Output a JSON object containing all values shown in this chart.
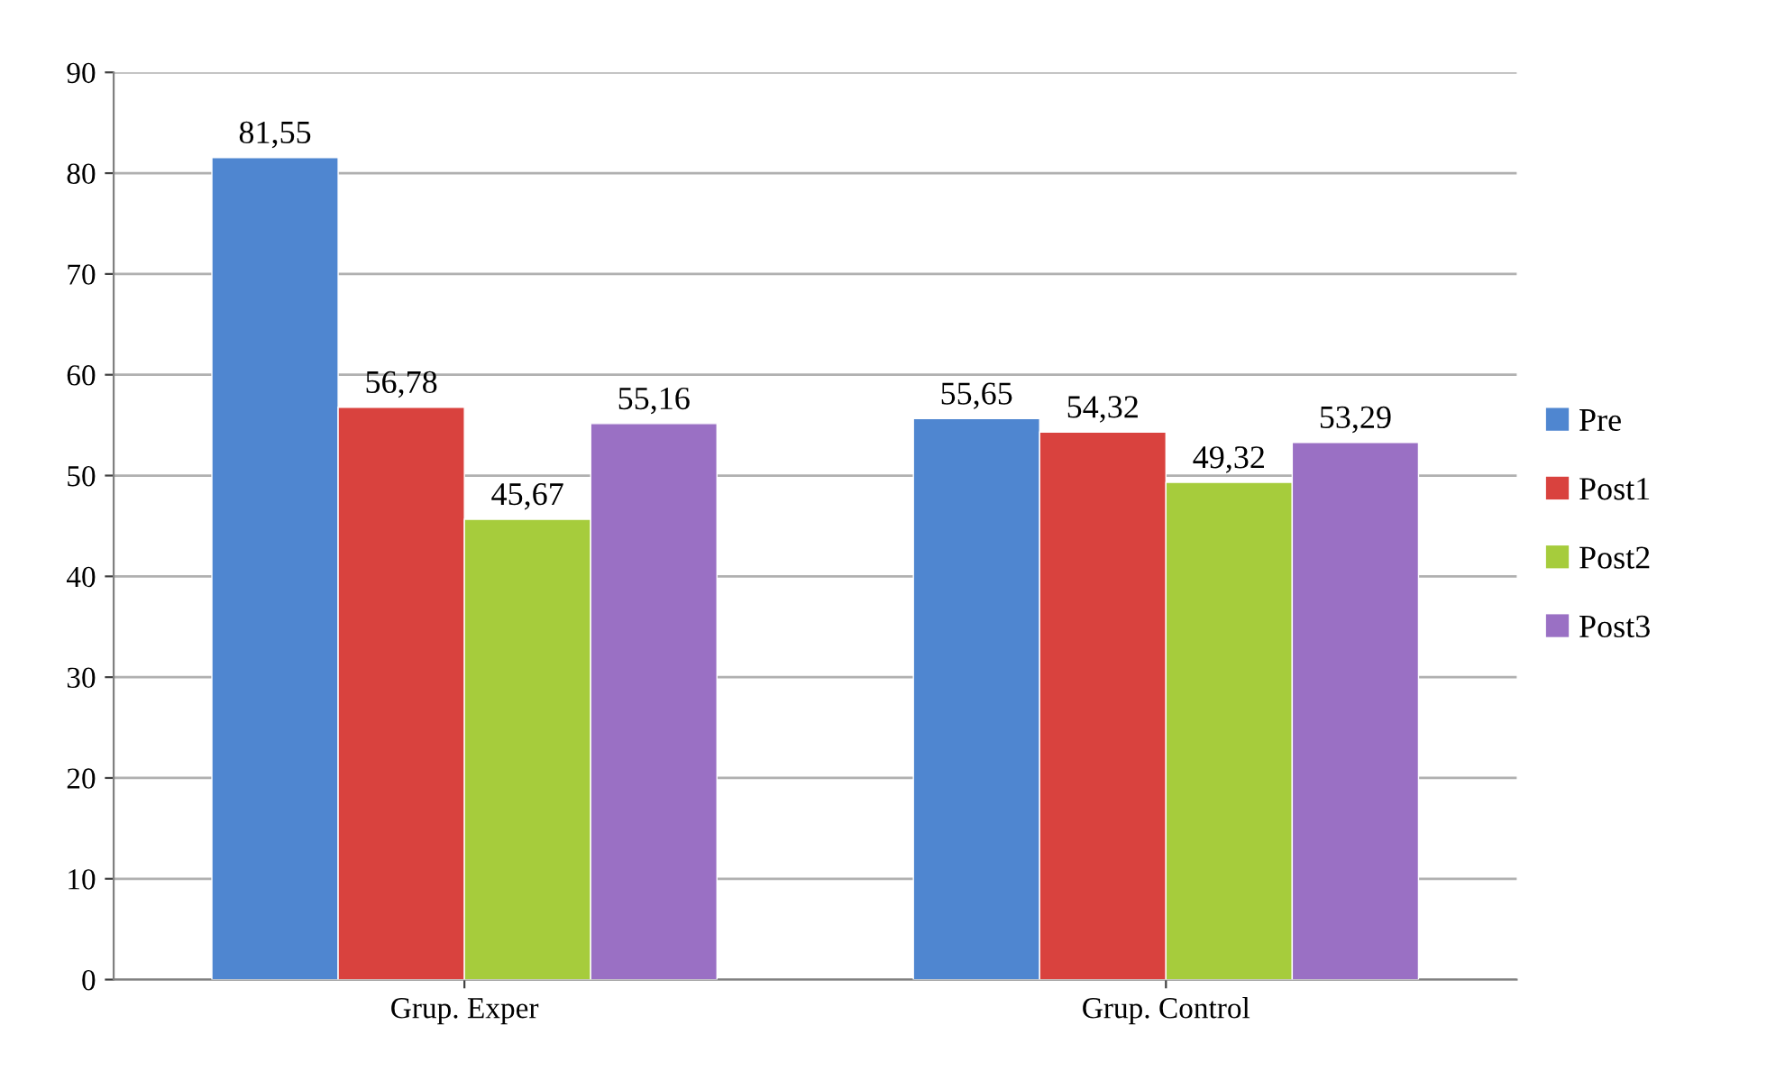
{
  "chart_data": {
    "type": "bar",
    "categories": [
      "Grup. Exper",
      "Grup. Control"
    ],
    "series": [
      {
        "name": "Pre",
        "color": "#4f86d0",
        "values": [
          81.55,
          55.65
        ],
        "value_labels": [
          "81,55",
          "55,65"
        ]
      },
      {
        "name": "Post1",
        "color": "#d9423e",
        "values": [
          56.78,
          54.32
        ],
        "value_labels": [
          "56,78",
          "54,32"
        ]
      },
      {
        "name": "Post2",
        "color": "#a6cc3c",
        "values": [
          45.67,
          49.32
        ],
        "value_labels": [
          "45,67",
          "49,32"
        ]
      },
      {
        "name": "Post3",
        "color": "#9a70c4",
        "values": [
          55.16,
          53.29
        ],
        "value_labels": [
          "55,16",
          "53,29"
        ]
      }
    ],
    "ylim": [
      0,
      90
    ],
    "yticks": [
      0,
      10,
      20,
      30,
      40,
      50,
      60,
      70,
      80,
      90
    ],
    "grid": "y",
    "legend": "right"
  }
}
